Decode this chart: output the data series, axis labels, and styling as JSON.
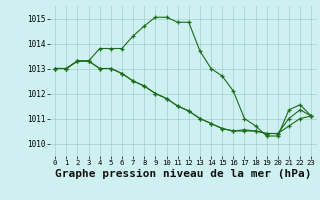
{
  "title": "Graphe pression niveau de la mer (hPa)",
  "title_fontsize": 8,
  "bg_color": "#cff0f0",
  "grid_color": "#aad4d4",
  "line_color": "#1a6b1a",
  "xlim": [
    -0.5,
    23.5
  ],
  "ylim": [
    1009.5,
    1015.5
  ],
  "yticks": [
    1010,
    1011,
    1012,
    1013,
    1014,
    1015
  ],
  "xticks": [
    0,
    1,
    2,
    3,
    4,
    5,
    6,
    7,
    8,
    9,
    10,
    11,
    12,
    13,
    14,
    15,
    16,
    17,
    18,
    19,
    20,
    21,
    22,
    23
  ],
  "series1_x": [
    0,
    1,
    2,
    3,
    4,
    5,
    6,
    7,
    8,
    9,
    10,
    11,
    12,
    13,
    14,
    15,
    16,
    17,
    18,
    19,
    20,
    21,
    22,
    23
  ],
  "series1_y": [
    1013.0,
    1013.0,
    1013.3,
    1013.3,
    1013.8,
    1013.8,
    1013.8,
    1014.3,
    1014.7,
    1015.05,
    1015.05,
    1014.85,
    1014.85,
    1013.7,
    1013.0,
    1012.7,
    1012.1,
    1011.0,
    1010.7,
    1010.3,
    1010.3,
    1011.35,
    1011.55,
    1011.1
  ],
  "series2_x": [
    0,
    1,
    2,
    3,
    4,
    5,
    6,
    7,
    8,
    9,
    10,
    11,
    12,
    13,
    14,
    15,
    16,
    17,
    18,
    19,
    20,
    21,
    22,
    23
  ],
  "series2_y": [
    1013.0,
    1013.0,
    1013.3,
    1013.3,
    1013.0,
    1013.0,
    1012.8,
    1012.5,
    1012.3,
    1012.0,
    1011.8,
    1011.5,
    1011.3,
    1011.0,
    1010.8,
    1010.6,
    1010.5,
    1010.5,
    1010.5,
    1010.4,
    1010.4,
    1010.7,
    1011.0,
    1011.1
  ],
  "series3_x": [
    0,
    1,
    2,
    3,
    4,
    5,
    6,
    7,
    8,
    9,
    10,
    11,
    12,
    13,
    14,
    15,
    16,
    17,
    18,
    19,
    20,
    21,
    22,
    23
  ],
  "series3_y": [
    1013.0,
    1013.0,
    1013.3,
    1013.3,
    1013.0,
    1013.0,
    1012.8,
    1012.5,
    1012.3,
    1012.0,
    1011.8,
    1011.5,
    1011.3,
    1011.0,
    1010.8,
    1010.6,
    1010.5,
    1010.55,
    1010.5,
    1010.4,
    1010.4,
    1011.0,
    1011.35,
    1011.1
  ]
}
